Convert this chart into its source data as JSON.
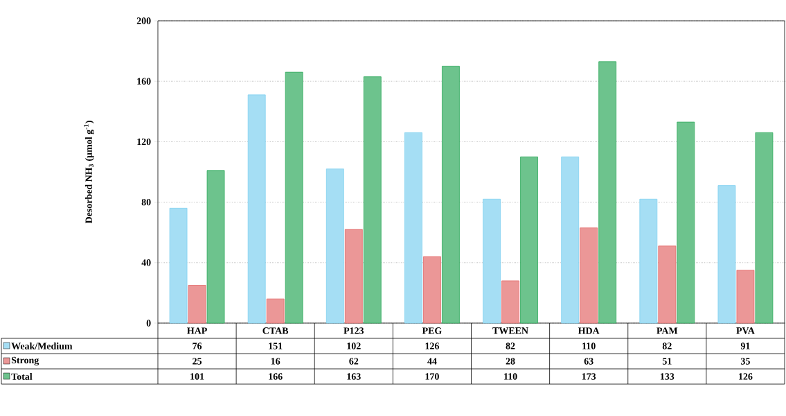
{
  "chart_data": {
    "type": "bar",
    "ylabel": "Desorbed NH$_{3}$ (µmol g$^{-1}$)",
    "categories": [
      "HAP",
      "CTAB",
      "P123",
      "PEG",
      "TWEEN",
      "HDA",
      "PAM",
      "PVA"
    ],
    "series": [
      {
        "name": "Weak/Medium",
        "color": "#7fd0f0",
        "values": [
          76,
          151,
          102,
          126,
          82,
          110,
          82,
          91
        ],
        "value_labels": [
          "76",
          "151",
          "102",
          "126",
          "82",
          "110",
          "82",
          "91"
        ]
      },
      {
        "name": "Strong",
        "color": "#e36a6a",
        "values": [
          25,
          16,
          62,
          44,
          28,
          63,
          51,
          35
        ],
        "value_labels": [
          "25",
          "16",
          "62",
          "44",
          "28",
          "63",
          "51",
          "35"
        ]
      },
      {
        "name": "Total",
        "color": "#2faa5c",
        "values": [
          101,
          166,
          163,
          170,
          110,
          173,
          133,
          126
        ],
        "value_labels": [
          "101",
          "166",
          "163",
          "170",
          "110",
          "173",
          "133",
          "126"
        ]
      }
    ],
    "ylim": [
      0,
      200
    ],
    "yticks": [
      0,
      40,
      80,
      120,
      160,
      200
    ],
    "grid": "y",
    "legend": "bottom"
  }
}
